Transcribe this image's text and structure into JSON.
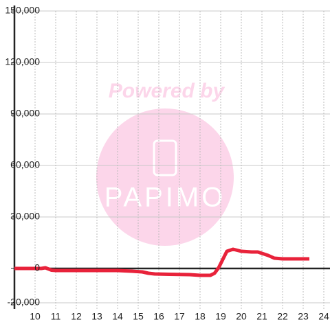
{
  "chart_data": {
    "type": "line",
    "watermark": [
      "Powered by",
      "PAPIMO"
    ],
    "x": [
      9,
      10,
      10.3,
      10.5,
      10.8,
      11,
      12,
      13,
      14,
      14.7,
      15.2,
      15.5,
      15.8,
      16.5,
      17.5,
      18,
      18.5,
      18.7,
      18.9,
      19.1,
      19.3,
      19.6,
      20,
      20.5,
      20.8,
      21,
      21.3,
      21.6,
      22,
      22.5,
      23.3
    ],
    "series": [
      {
        "color": "#e8223a",
        "values": [
          0,
          0,
          0,
          400,
          -1000,
          -1200,
          -1200,
          -1200,
          -1200,
          -1600,
          -2000,
          -2800,
          -3200,
          -3400,
          -3600,
          -4000,
          -4000,
          -2800,
          400,
          5200,
          10000,
          11200,
          10000,
          9600,
          9600,
          8800,
          7600,
          6000,
          5600,
          5600,
          5600
        ]
      }
    ],
    "xlim": [
      9,
      24.3
    ],
    "xticks": [
      10,
      11,
      12,
      13,
      14,
      15,
      16,
      17,
      18,
      19,
      20,
      21,
      22,
      23,
      24
    ],
    "ylim": [
      -20000,
      150000
    ],
    "yticks": [
      {
        "value": -20000,
        "label": "-20,000"
      },
      0,
      {
        "value": 30000,
        "label": "30,000"
      },
      {
        "value": 60000,
        "label": "60,000"
      },
      {
        "value": 90000,
        "label": "90,000"
      },
      {
        "value": 120000,
        "label": "120,000"
      },
      {
        "value": 150000,
        "label": "150,000"
      }
    ],
    "grid": true
  }
}
